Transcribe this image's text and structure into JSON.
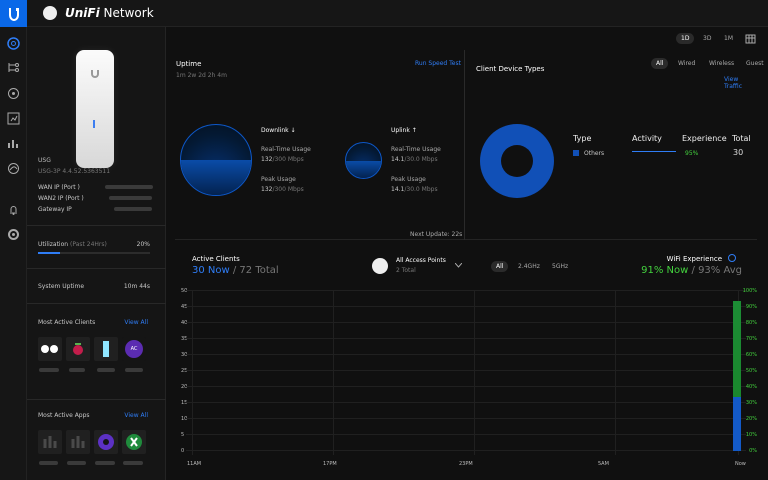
{
  "brand": {
    "name_strong": "UniFi",
    "name": " Network"
  },
  "topbar": {
    "periods": [
      "1D",
      "3D",
      "1M"
    ],
    "selected": "1D"
  },
  "left": {
    "device_model": "USG",
    "device_version": "USG-3P 4.4.52.5363511",
    "wan_ip_label": "WAN IP (Port )",
    "wan2_ip_label": "WAN2 IP (Port )",
    "gateway_ip_label": "Gateway IP",
    "utilization_label": "Utilization",
    "utilization_period": "(Past 24Hrs)",
    "utilization_value": "20%",
    "system_uptime_label": "System Uptime",
    "system_uptime_value": "10m 44s",
    "active_clients_title": "Most Active Clients",
    "active_apps_title": "Most Active Apps",
    "view_all": "View All",
    "client_icon_ac": "AC"
  },
  "uptime": {
    "title": "Uptime",
    "duration": "1m 2w 2d 2h 4m",
    "speed_test": "Run Speed Test",
    "downlink": {
      "label": "Downlink",
      "real_time_label": "Real-Time Usage",
      "real_time_value": "132",
      "real_time_unit": "/300 Mbps",
      "peak_label": "Peak Usage",
      "peak_value": "132",
      "peak_unit": "/300 Mbps"
    },
    "uplink": {
      "label": "Uplink",
      "real_time_label": "Real-Time Usage",
      "real_time_value": "14.1",
      "real_time_unit": "/30.0 Mbps",
      "peak_label": "Peak Usage",
      "peak_value": "14.1",
      "peak_unit": "/30.0 Mbps"
    },
    "next_update": "Next Update: 22s"
  },
  "client_types": {
    "title": "Client Device Types",
    "filters": [
      "All",
      "Wired",
      "Wireless",
      "Guest"
    ],
    "selected_filter": "All",
    "view_traffic": "View Traffic",
    "table_headers": [
      "Type",
      "Activity",
      "Experience",
      "Total"
    ],
    "row": {
      "type": "Others",
      "experience": "95%",
      "total": "30"
    }
  },
  "active_clients": {
    "title": "Active Clients",
    "now": "30 Now",
    "total": " / 72 Total",
    "access_points": "All Access Points",
    "access_points_count": "2 Total",
    "bands": [
      "All",
      "2.4GHz",
      "5GHz"
    ],
    "selected_band": "All",
    "wifi_experience_label": "WiFi Experience",
    "wifi_now": "91% Now",
    "wifi_avg": " / 93% Avg",
    "y_left": [
      "45",
      "40",
      "35",
      "30",
      "25",
      "20",
      "15",
      "10",
      "5",
      "0"
    ],
    "y_left_top": "50",
    "y_right": [
      "100%",
      "90%",
      "80%",
      "70%",
      "60%",
      "50%",
      "40%",
      "30%",
      "20%",
      "10%",
      "0%"
    ],
    "x_labels": [
      "11AM",
      "17PM",
      "23PM",
      "5AM",
      "Now"
    ]
  },
  "colors": {
    "accent": "#2f7df6",
    "bar": "#1150b7",
    "green": "#43d23e"
  }
}
